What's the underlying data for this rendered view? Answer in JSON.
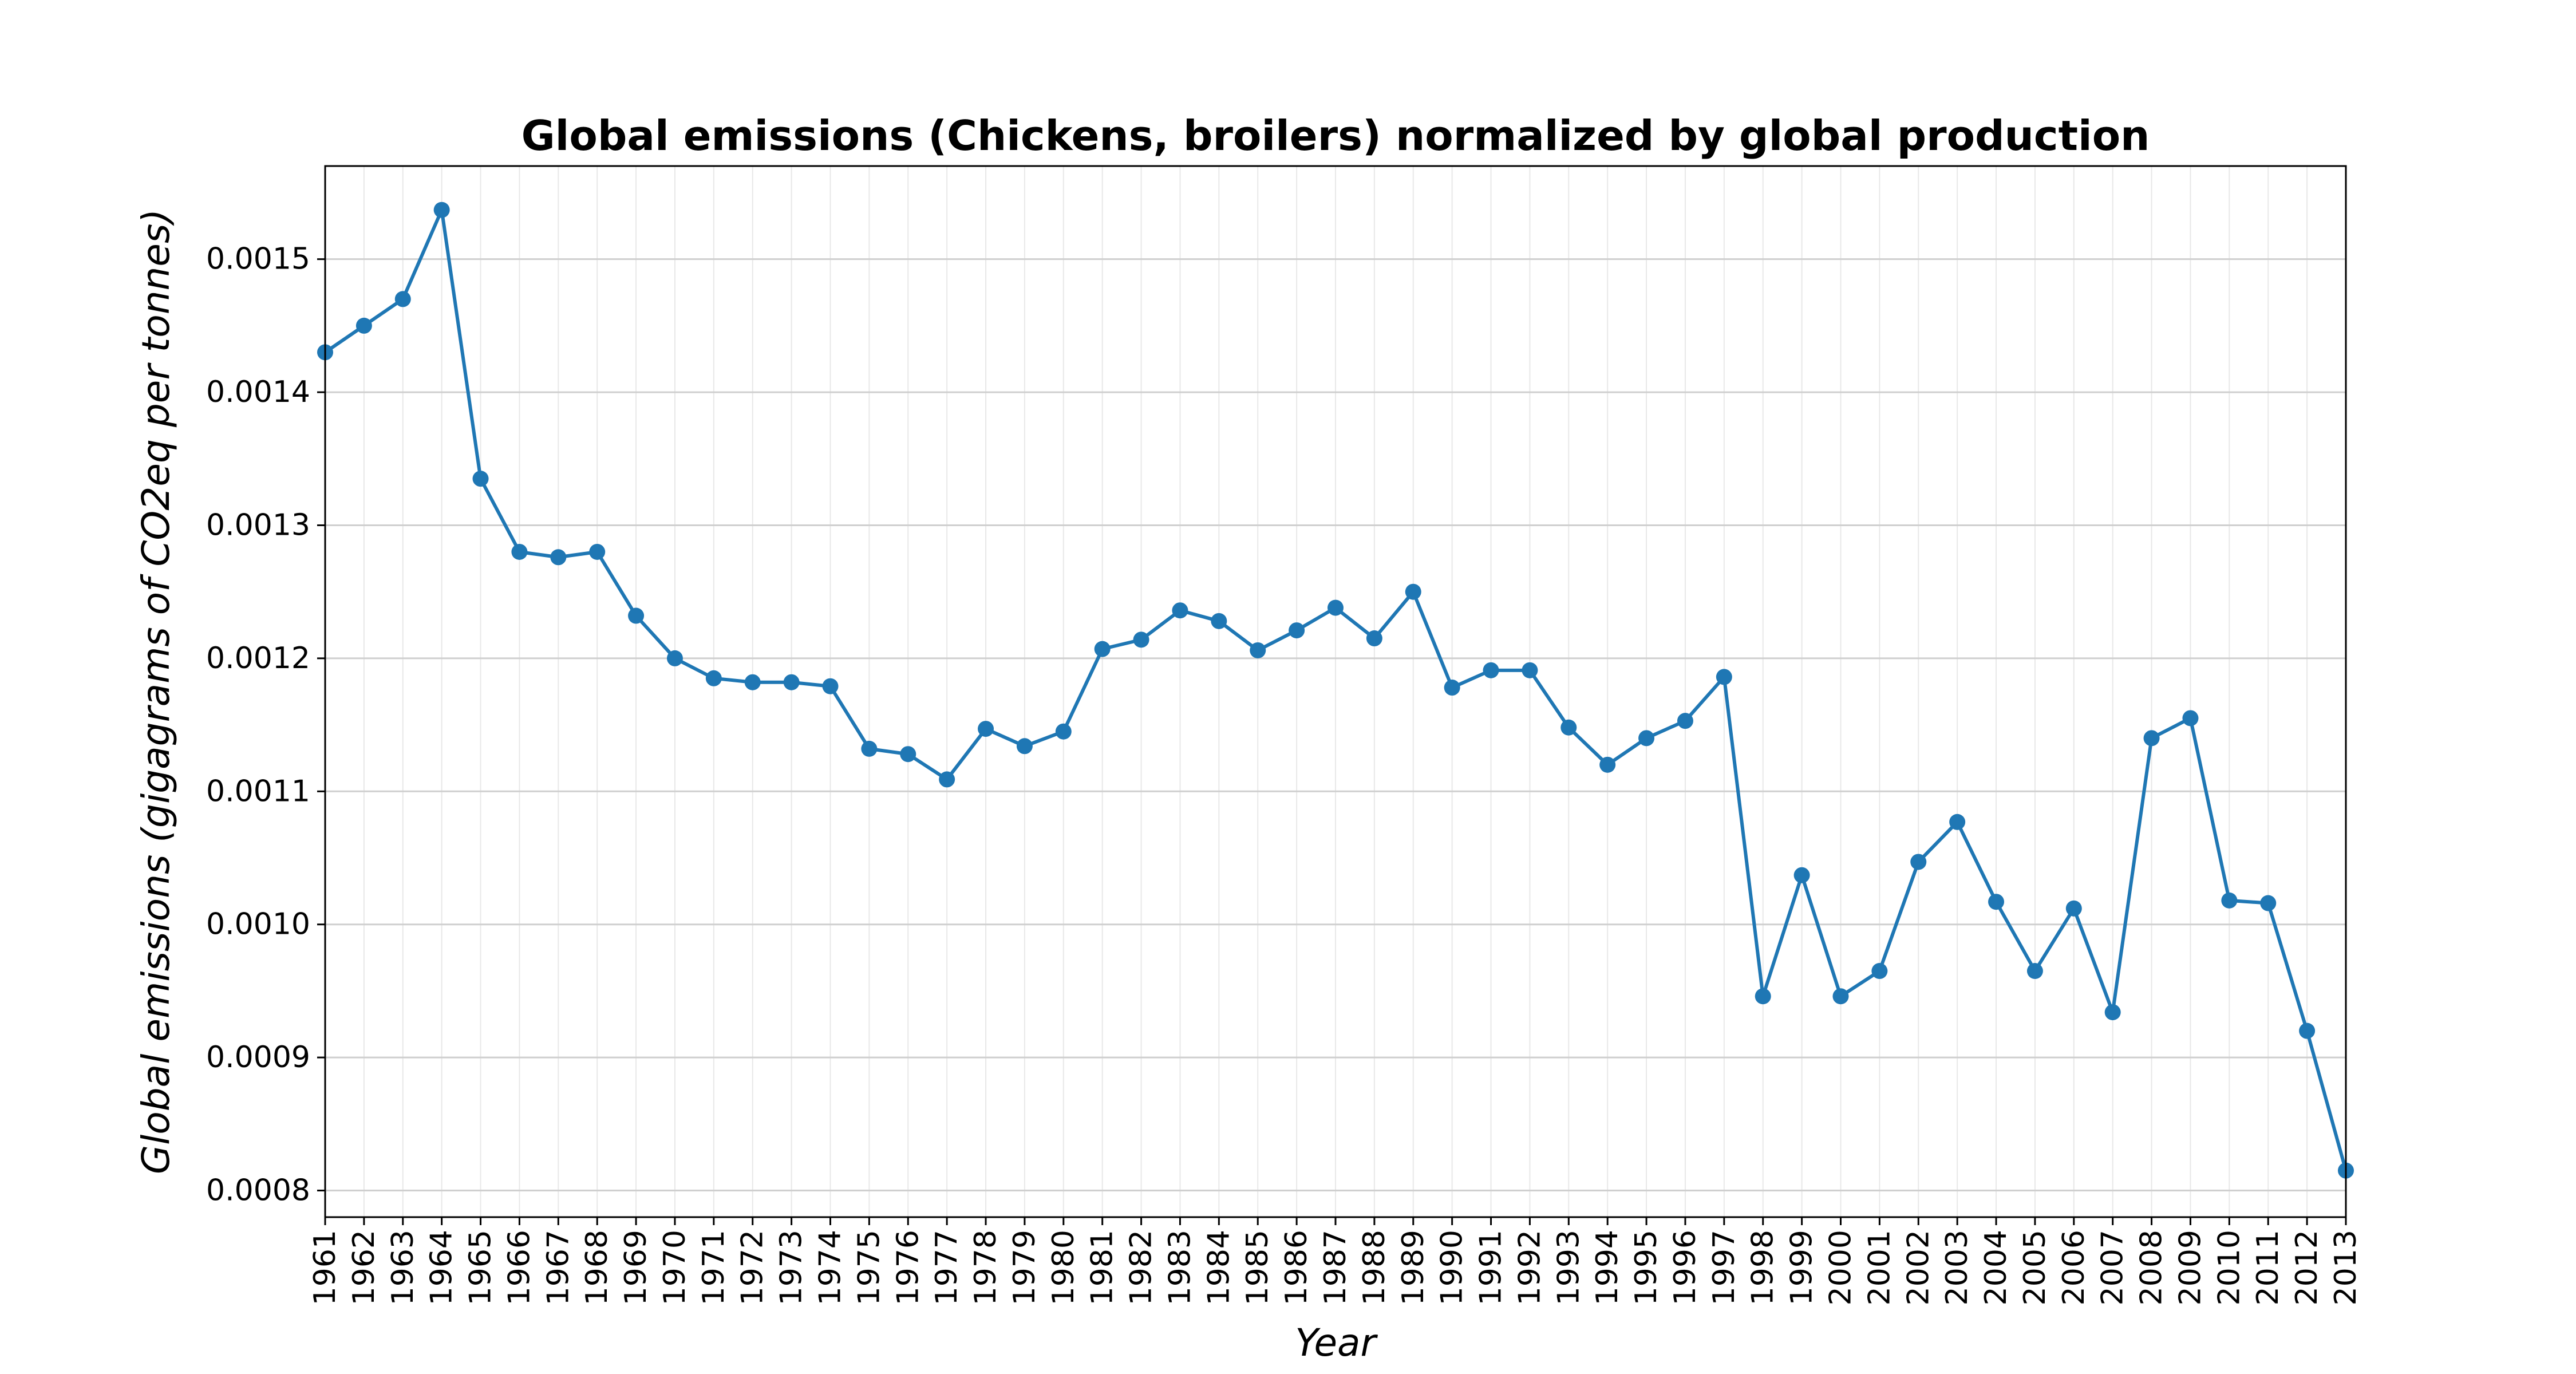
{
  "chart_data": {
    "type": "line",
    "title": "Global emissions (Chickens, broilers) normalized by global production",
    "xlabel": "Year",
    "ylabel": "Global emissions (gigagrams of CO2eq per tonnes)",
    "xlim": [
      1961,
      2013
    ],
    "ylim": [
      0.00078,
      0.00157
    ],
    "yticks": [
      "0.0008",
      "0.0009",
      "0.0010",
      "0.0011",
      "0.0012",
      "0.0013",
      "0.0014",
      "0.0015"
    ],
    "grid": true,
    "series_color": "#1f77b4",
    "x": [
      1961,
      1962,
      1963,
      1964,
      1965,
      1966,
      1967,
      1968,
      1969,
      1970,
      1971,
      1972,
      1973,
      1974,
      1975,
      1976,
      1977,
      1978,
      1979,
      1980,
      1981,
      1982,
      1983,
      1984,
      1985,
      1986,
      1987,
      1988,
      1989,
      1990,
      1991,
      1992,
      1993,
      1994,
      1995,
      1996,
      1997,
      1998,
      1999,
      2000,
      2001,
      2002,
      2003,
      2004,
      2005,
      2006,
      2007,
      2008,
      2009,
      2010,
      2011,
      2012,
      2013
    ],
    "series": [
      {
        "values": [
          0.00143,
          0.00145,
          0.00147,
          0.001537,
          0.001335,
          0.00128,
          0.001276,
          0.00128,
          0.001232,
          0.0012,
          0.001185,
          0.001182,
          0.001182,
          0.001179,
          0.001132,
          0.001128,
          0.001109,
          0.001147,
          0.001134,
          0.001145,
          0.001207,
          0.001214,
          0.001236,
          0.001228,
          0.001206,
          0.001221,
          0.001238,
          0.001215,
          0.00125,
          0.001178,
          0.001191,
          0.001191,
          0.001148,
          0.00112,
          0.00114,
          0.001153,
          0.001186,
          0.000946,
          0.001037,
          0.000946,
          0.000965,
          0.001047,
          0.001077,
          0.001017,
          0.000965,
          0.001012,
          0.000934,
          0.00114,
          0.001155,
          0.001018,
          0.001016,
          0.00092,
          0.000815
        ]
      }
    ]
  }
}
